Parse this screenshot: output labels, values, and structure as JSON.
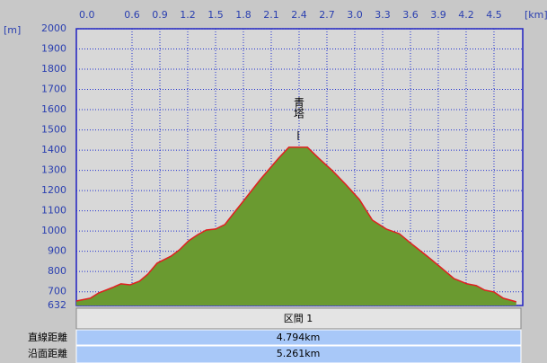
{
  "chart_data": {
    "type": "area",
    "y_unit": "[m]",
    "x_unit": "[km]",
    "annotation": {
      "text": "青塔",
      "x": 2.39,
      "y": 1414
    },
    "x": [
      0,
      0.15,
      0.24,
      0.39,
      0.48,
      0.58,
      0.68,
      0.77,
      0.87,
      1.02,
      1.11,
      1.21,
      1.31,
      1.4,
      1.5,
      1.6,
      1.69,
      1.79,
      1.89,
      1.98,
      2.08,
      2.18,
      2.29,
      2.49,
      2.61,
      2.76,
      2.9,
      3.05,
      3.19,
      3.34,
      3.48,
      3.63,
      3.78,
      3.92,
      4.07,
      4.21,
      4.31,
      4.4,
      4.5,
      4.6,
      4.74
    ],
    "values": [
      654,
      668,
      694,
      721,
      739,
      734,
      752,
      787,
      841,
      876,
      907,
      952,
      983,
      1005,
      1010,
      1032,
      1085,
      1143,
      1201,
      1254,
      1307,
      1361,
      1414,
      1414,
      1361,
      1298,
      1232,
      1156,
      1054,
      1010,
      987,
      930,
      876,
      823,
      765,
      739,
      730,
      708,
      699,
      668,
      650
    ],
    "line_color": "#e02020",
    "fill_color": "#6a9a30",
    "xlim": [
      0,
      4.81
    ],
    "ylim": [
      632,
      2000
    ],
    "xticks": [
      {
        "value": 0,
        "label": "0.0"
      },
      0.6,
      0.9,
      1.2,
      1.5,
      1.8,
      2.1,
      2.4,
      2.7,
      {
        "value": 3,
        "label": "3.0"
      },
      3.3,
      3.6,
      3.9,
      4.2,
      4.5
    ],
    "yticks": [
      632,
      700,
      800,
      900,
      1000,
      1100,
      1200,
      1300,
      1400,
      1500,
      1600,
      1700,
      1800,
      1900,
      2000
    ],
    "grid": true
  },
  "summary": {
    "section": "区間 1",
    "rows": [
      [
        "直線距離",
        "4.794km"
      ],
      [
        "沿面距離",
        "5.261km"
      ]
    ]
  }
}
